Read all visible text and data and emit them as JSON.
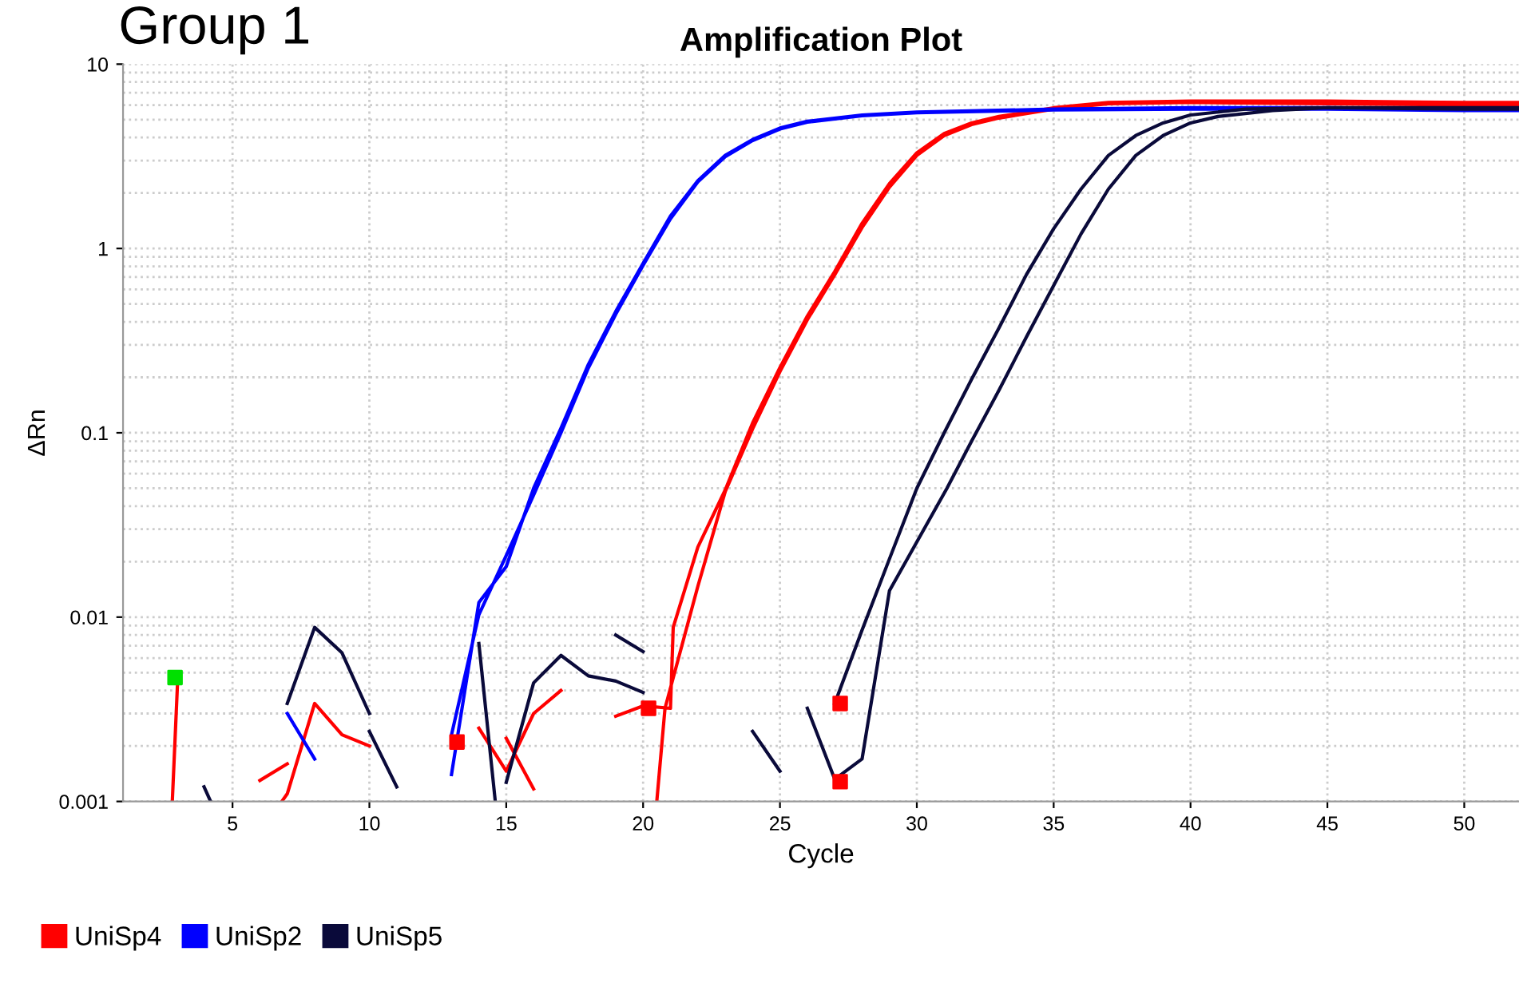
{
  "chart_data": {
    "type": "line",
    "title": "Amplification Plot",
    "xlabel": "Cycle",
    "ylabel": "ΔRn",
    "annotations": [
      "Group 1"
    ],
    "log": "y",
    "xlim": [
      1,
      52
    ],
    "ylim": [
      0.001,
      10
    ],
    "xticks": [
      5,
      10,
      15,
      20,
      25,
      30,
      35,
      40,
      45,
      50
    ],
    "yticks": [
      0.001,
      0.01,
      0.1,
      1,
      10
    ],
    "grid": true,
    "legend": "bottom left",
    "marker": "none",
    "line_style": "solid",
    "series": [
      {
        "name": "UniSp4",
        "color": "#ff0000",
        "x": [
          2.8,
          3.0,
          null,
          6.0,
          7.0,
          null,
          6.8,
          7.0,
          8,
          9,
          10,
          null,
          14,
          15,
          16,
          17,
          null,
          15,
          16,
          null,
          19,
          20,
          21,
          21.1,
          22,
          23,
          24,
          25,
          26,
          27,
          28,
          29,
          30,
          31,
          32,
          33,
          35,
          37,
          40,
          45,
          50,
          52,
          null,
          20.5,
          20.8,
          22,
          23,
          24,
          25,
          26,
          27,
          28,
          29,
          30,
          31,
          32,
          33,
          35,
          37,
          40,
          45,
          50,
          52
        ],
        "values": [
          0.001,
          0.0047,
          null,
          0.0013,
          0.0016,
          null,
          0.001,
          0.0011,
          0.0034,
          0.0023,
          0.002,
          null,
          0.0025,
          0.00146,
          0.003,
          0.004,
          null,
          0.0022,
          0.00117,
          null,
          0.0029,
          0.0033,
          0.0032,
          0.0088,
          0.024,
          0.049,
          0.113,
          0.226,
          0.43,
          0.75,
          1.37,
          2.25,
          3.3,
          4.2,
          4.8,
          5.2,
          5.8,
          6.2,
          6.3,
          6.3,
          6.2,
          6.2,
          null,
          0.001,
          0.0032,
          0.0147,
          0.048,
          0.105,
          0.215,
          0.41,
          0.72,
          1.3,
          2.15,
          3.2,
          4.1,
          4.7,
          5.1,
          5.7,
          6.1,
          6.2,
          6.1,
          6.0,
          6.0
        ]
      },
      {
        "name": "UniSp2",
        "color": "#0000ff",
        "x": [
          7,
          8,
          null,
          13,
          14,
          15,
          16,
          17,
          18,
          19,
          20,
          21,
          22,
          23,
          24,
          25,
          26,
          28,
          30,
          35,
          40,
          45,
          50,
          52,
          null,
          13,
          14,
          15,
          16,
          17,
          18,
          19,
          20,
          21,
          22,
          23,
          24,
          25,
          26,
          28,
          30,
          35,
          40,
          45,
          50,
          52
        ],
        "values": [
          0.003,
          0.0017,
          null,
          0.0014,
          0.012,
          0.0188,
          0.05,
          0.106,
          0.235,
          0.455,
          0.83,
          1.5,
          2.33,
          3.2,
          3.9,
          4.5,
          4.9,
          5.3,
          5.5,
          5.7,
          5.8,
          5.8,
          5.7,
          5.7,
          null,
          0.0023,
          0.0103,
          0.0216,
          0.046,
          0.1,
          0.225,
          0.44,
          0.81,
          1.45,
          2.3,
          3.15,
          3.85,
          4.45,
          4.85,
          5.25,
          5.45,
          5.65,
          5.7,
          5.7,
          5.6,
          5.6
        ]
      },
      {
        "name": "UniSp5",
        "color": "#0a0a3a",
        "x": [
          3.96,
          4.2,
          null,
          7,
          8,
          9,
          10,
          null,
          10,
          11,
          null,
          14,
          14.6,
          null,
          15,
          16,
          17,
          18,
          19,
          20,
          null,
          19,
          20,
          null,
          24,
          25,
          null,
          27,
          28,
          29,
          30,
          31,
          32,
          33,
          34,
          35,
          36,
          37,
          38,
          39,
          40,
          42,
          45,
          50,
          52,
          null,
          26,
          27,
          28,
          29,
          31.1,
          32,
          33,
          34,
          35,
          36,
          37,
          38,
          39,
          40,
          41,
          43,
          45,
          50,
          52
        ],
        "values": [
          0.0012,
          0.001,
          null,
          0.0034,
          0.0088,
          0.0064,
          0.003,
          null,
          0.0024,
          0.0012,
          null,
          0.0072,
          0.001,
          null,
          0.00127,
          0.0044,
          0.0062,
          0.0048,
          0.0045,
          0.0039,
          null,
          0.008,
          0.0065,
          null,
          0.0024,
          0.00146,
          null,
          0.0034,
          0.0085,
          0.0207,
          0.05,
          0.1,
          0.195,
          0.37,
          0.72,
          1.28,
          2.1,
          3.2,
          4.1,
          4.8,
          5.3,
          5.7,
          5.8,
          5.7,
          5.7,
          null,
          0.0032,
          0.00132,
          0.0017,
          0.0139,
          0.05,
          0.09,
          0.17,
          0.33,
          0.63,
          1.2,
          2.1,
          3.2,
          4.1,
          4.8,
          5.2,
          5.6,
          5.8,
          5.8,
          5.8
        ]
      },
      {
        "type": "scatter",
        "marker": "square",
        "x": [
          2.9,
          13.2,
          20.2,
          27.2,
          27.2
        ],
        "values": [
          0.0047,
          0.0021,
          0.0032,
          0.0034,
          0.00128
        ],
        "colors": [
          "#00e000",
          "#ff0000",
          "#ff0000",
          "#ff0000",
          "#ff0000"
        ]
      }
    ]
  }
}
